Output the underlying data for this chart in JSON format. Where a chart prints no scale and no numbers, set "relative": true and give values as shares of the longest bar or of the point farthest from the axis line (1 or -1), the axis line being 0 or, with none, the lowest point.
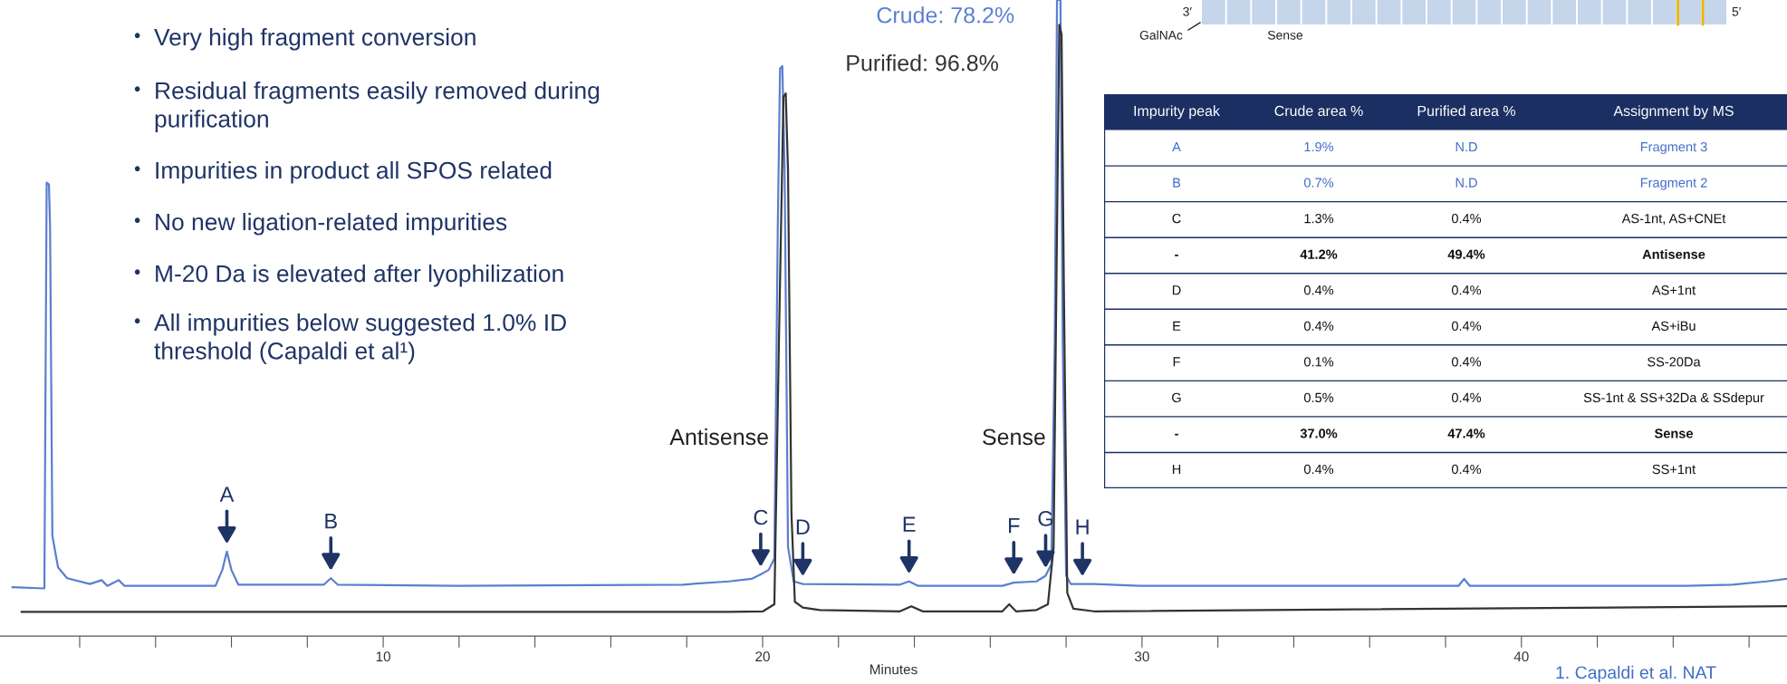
{
  "chart_data": [
    {
      "type": "line",
      "xlabel": "Minutes",
      "relative": true,
      "legend": false,
      "grid": false,
      "xlim": [
        -0.1,
        47.0
      ],
      "xticks": [
        {
          "value": 2,
          "label": null
        },
        {
          "value": 4,
          "label": null
        },
        {
          "value": 6,
          "label": null
        },
        {
          "value": 8,
          "label": null
        },
        10,
        {
          "value": 12,
          "label": null
        },
        {
          "value": 14,
          "label": null
        },
        {
          "value": 16,
          "label": null
        },
        {
          "value": 18,
          "label": null
        },
        20,
        {
          "value": 22,
          "label": null
        },
        {
          "value": 24,
          "label": null
        },
        {
          "value": 26,
          "label": null
        },
        {
          "value": 28,
          "label": null
        },
        30,
        {
          "value": 32,
          "label": null
        },
        {
          "value": 34,
          "label": null
        },
        {
          "value": 36,
          "label": null
        },
        {
          "value": 38,
          "label": null
        },
        40,
        {
          "value": 42,
          "label": null
        },
        {
          "value": 44,
          "label": null
        },
        {
          "value": 46,
          "label": null
        }
      ],
      "series": [
        {
          "name": "Crude: 78.2%",
          "color": "#5b7fd0",
          "x": [
            0.23,
            1.07,
            1.13,
            1.19,
            1.22,
            1.28,
            1.43,
            1.67,
            2.27,
            2.58,
            2.73,
            3.03,
            3.18,
            5.58,
            5.76,
            5.88,
            6.0,
            6.18,
            8.44,
            8.62,
            8.8,
            11.89,
            17.9,
            19.11,
            19.71,
            19.95,
            20.16,
            20.31,
            20.4,
            20.46,
            20.52,
            20.58,
            20.67,
            20.82,
            21.06,
            23.62,
            23.86,
            24.1,
            26.32,
            26.62,
            27.22,
            27.46,
            27.61,
            27.7,
            27.76,
            27.85,
            27.91,
            28.0,
            28.12,
            28.73,
            29.93,
            38.34,
            38.49,
            38.64,
            44.36,
            45.56,
            46.46,
            47.0
          ],
          "values": [
            0.077,
            0.075,
            0.713,
            0.71,
            0.642,
            0.158,
            0.108,
            0.091,
            0.082,
            0.088,
            0.079,
            0.088,
            0.079,
            0.079,
            0.104,
            0.133,
            0.104,
            0.081,
            0.081,
            0.091,
            0.081,
            0.079,
            0.081,
            0.086,
            0.09,
            0.097,
            0.104,
            0.122,
            0.642,
            0.892,
            0.896,
            0.731,
            0.14,
            0.086,
            0.082,
            0.081,
            0.086,
            0.079,
            0.079,
            0.084,
            0.086,
            0.095,
            0.113,
            0.462,
            1.0,
            1.0,
            0.462,
            0.095,
            0.082,
            0.082,
            0.079,
            0.079,
            0.09,
            0.079,
            0.079,
            0.081,
            0.086,
            0.09
          ]
        },
        {
          "name": "Purified: 96.8%",
          "color": "#333333",
          "x": [
            0.47,
            19.11,
            20.01,
            20.31,
            20.43,
            20.55,
            20.61,
            20.67,
            20.76,
            20.85,
            21.06,
            21.51,
            23.62,
            23.92,
            24.22,
            26.32,
            26.5,
            26.68,
            27.22,
            27.52,
            27.67,
            27.76,
            27.82,
            27.88,
            27.94,
            28.03,
            28.19,
            28.73,
            47.0
          ],
          "values": [
            0.038,
            0.038,
            0.039,
            0.05,
            0.462,
            0.848,
            0.853,
            0.731,
            0.194,
            0.054,
            0.045,
            0.041,
            0.039,
            0.047,
            0.039,
            0.039,
            0.05,
            0.039,
            0.041,
            0.05,
            0.14,
            0.642,
            0.961,
            0.946,
            0.552,
            0.068,
            0.043,
            0.039,
            0.047
          ]
        }
      ],
      "annotations": [
        "• Very high fragment conversion",
        "• Residual fragments easily removed during\npurification",
        "• Impurities in product all SPOS related",
        "• No new ligation-related impurities",
        "• M-20 Da is elevated after lyophilization",
        "• All impurities below suggested 1.0% ID\nthreshold (Capaldi et al¹)",
        {
          "text": "Antisense",
          "x": 20.5,
          "y": 0.31
        },
        {
          "text": "Sense",
          "x": 27.8,
          "y": 0.31
        },
        {
          "text": "A",
          "x": 5.88,
          "y": 0.133
        },
        {
          "text": "B",
          "x": 8.62,
          "y": 0.091
        },
        {
          "text": "C",
          "x": 19.95,
          "y": 0.097
        },
        {
          "text": "D",
          "x": 21.06,
          "y": 0.082
        },
        {
          "text": "E",
          "x": 23.86,
          "y": 0.086
        },
        {
          "text": "F",
          "x": 26.62,
          "y": 0.084
        },
        {
          "text": "G",
          "x": 27.46,
          "y": 0.095
        },
        {
          "text": "H",
          "x": 28.43,
          "y": 0.082
        },
        "1. Capaldi et al. NAT"
      ]
    },
    {
      "type": "other",
      "annotations": [
        "Impurity peak",
        "Crude area %",
        "Purified area %",
        "Assignment by MS",
        "A",
        "1.9%",
        "N.D",
        "Fragment 3",
        "B",
        "0.7%",
        "N.D",
        "Fragment 2",
        "C",
        "1.3%",
        "0.4%",
        "AS-1nt, AS+CNEt",
        "-",
        "41.2%",
        "49.4%",
        "Antisense",
        "D",
        "0.4%",
        "0.4%",
        "AS+1nt",
        "E",
        "0.4%",
        "0.4%",
        "AS+iBu",
        "F",
        "0.1%",
        "0.4%",
        "SS-20Da",
        "G",
        "0.5%",
        "0.4%",
        "SS-1nt & SS+32Da & SSdepur",
        "-",
        "37.0%",
        "47.4%",
        "Sense",
        "H",
        "0.4%",
        "0.4%",
        "SS+1nt"
      ]
    },
    {
      "type": "other",
      "annotations": [
        "3′",
        "5′",
        "GalNAc",
        "Sense"
      ]
    }
  ]
}
